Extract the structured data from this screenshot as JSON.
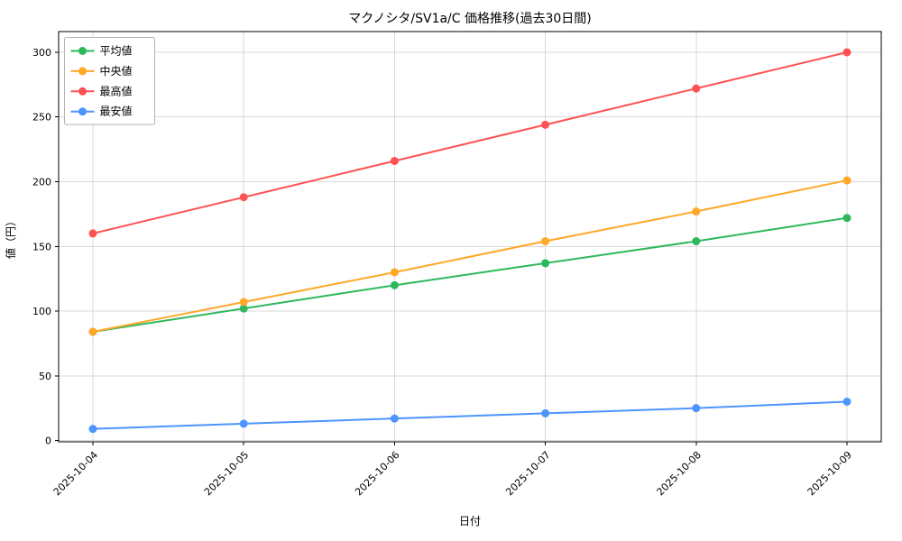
{
  "chart_data": {
    "type": "line",
    "title": "マクノシタ/SV1a/C 価格推移(過去30日間)",
    "xlabel": "日付",
    "ylabel": "値（円）",
    "categories": [
      "2025-10-04",
      "2025-10-05",
      "2025-10-06",
      "2025-10-07",
      "2025-10-08",
      "2025-10-09"
    ],
    "series": [
      {
        "name": "平均値",
        "color": "#2eb85c",
        "values": [
          84,
          102,
          120,
          137,
          154,
          172
        ]
      },
      {
        "name": "中央値",
        "color": "#ffa726",
        "values": [
          84,
          107,
          130,
          154,
          177,
          201
        ]
      },
      {
        "name": "最高値",
        "color": "#ff5252",
        "values": [
          160,
          188,
          216,
          244,
          272,
          300
        ]
      },
      {
        "name": "最安値",
        "color": "#4d94ff",
        "values": [
          9,
          13,
          17,
          21,
          25,
          30
        ]
      }
    ],
    "yticks": [
      0,
      50,
      100,
      150,
      200,
      250,
      300
    ],
    "ylim": [
      -1,
      316
    ],
    "grid": true,
    "legend_position": "upper-left",
    "colors": {
      "grid": "#d9d9d9",
      "axis": "#000000",
      "background": "#ffffff",
      "legend_border": "#b3b3b3"
    }
  }
}
